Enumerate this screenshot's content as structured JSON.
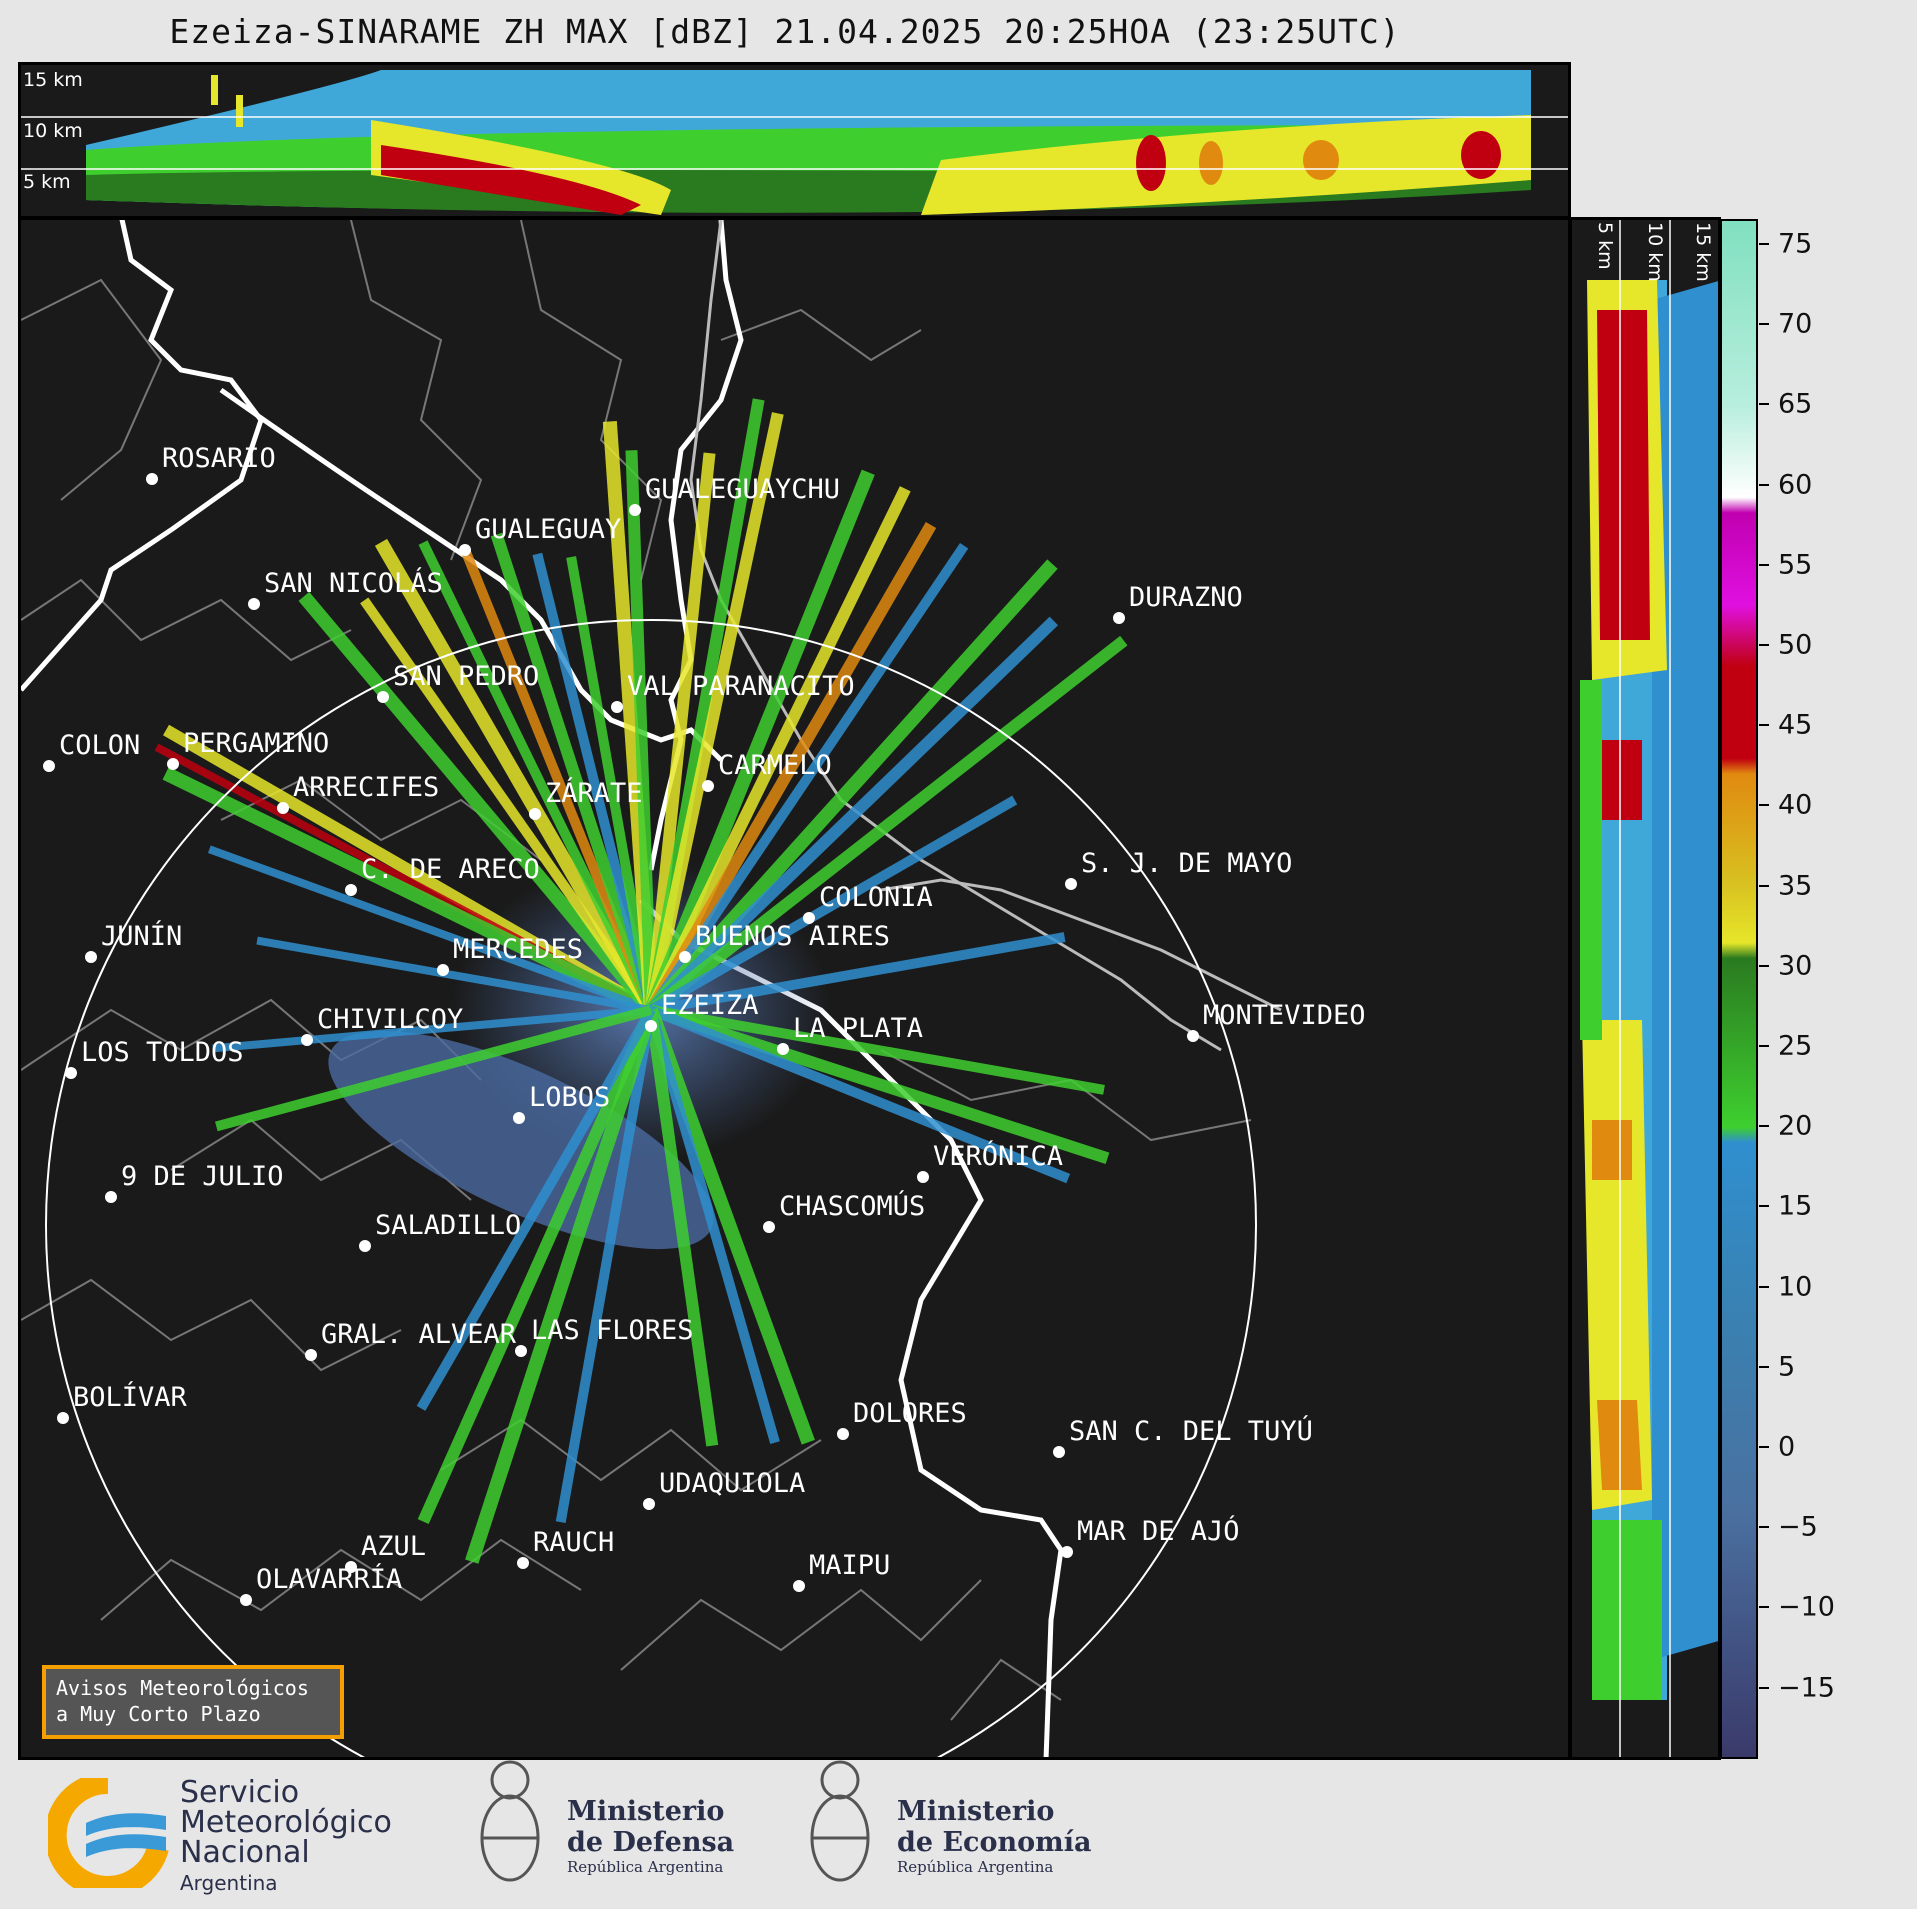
{
  "title": "Ezeiza-SINARAME ZH MAX [dBZ] 21.04.2025 20:25HOA (23:25UTC)",
  "top_panel": {
    "heights": [
      "15 km",
      "10 km",
      "5 km"
    ]
  },
  "right_panel": {
    "heights": [
      "5 km",
      "10 km",
      "15 km"
    ]
  },
  "colorbar": {
    "ticks": [
      "75",
      "70",
      "65",
      "60",
      "55",
      "50",
      "45",
      "40",
      "35",
      "30",
      "25",
      "20",
      "15",
      "10",
      "5",
      "0",
      "−5",
      "−10",
      "−15"
    ],
    "range": [
      -20,
      77
    ],
    "colors": {
      "low": "#3a3a6a",
      "blue": "#2f8fcf",
      "green": "#3ecf2f",
      "yellow": "#e6e62a",
      "orange": "#e08a10",
      "red": "#c00010",
      "magenta": "#e010e0",
      "white": "#ffffff",
      "mint": "#80e0c0"
    }
  },
  "cities": [
    {
      "name": "ROSARIO"
    },
    {
      "name": "GUALEGUAYCHU"
    },
    {
      "name": "GUALEGUAY"
    },
    {
      "name": "SAN NICOLÁS"
    },
    {
      "name": "DURAZNO"
    },
    {
      "name": "SAN PEDRO"
    },
    {
      "name": "VAL PARANACITO"
    },
    {
      "name": "COLON"
    },
    {
      "name": "PERGAMINO"
    },
    {
      "name": "CARMELO"
    },
    {
      "name": "ARRECIFES"
    },
    {
      "name": "ZÁRATE"
    },
    {
      "name": "S. J. DE MAYO"
    },
    {
      "name": "C. DE ARECO"
    },
    {
      "name": "COLONIA"
    },
    {
      "name": "JUNÍN"
    },
    {
      "name": "BUENOS AIRES"
    },
    {
      "name": "MERCEDES"
    },
    {
      "name": "EZEIZA"
    },
    {
      "name": "MONTEVIDEO"
    },
    {
      "name": "CHIVILCOY"
    },
    {
      "name": "LA PLATA"
    },
    {
      "name": "LOS TOLDOS"
    },
    {
      "name": "LOBOS"
    },
    {
      "name": "VERÓNICA"
    },
    {
      "name": "9 DE JULIO"
    },
    {
      "name": "CHASCOMÚS"
    },
    {
      "name": "SALADILLO"
    },
    {
      "name": "GRAL. ALVEAR"
    },
    {
      "name": "LAS FLORES"
    },
    {
      "name": "BOLÍVAR"
    },
    {
      "name": "DOLORES"
    },
    {
      "name": "SAN C. DEL TUYÚ"
    },
    {
      "name": "UDAQUIOLA"
    },
    {
      "name": "MAR DE AJÓ"
    },
    {
      "name": "AZUL"
    },
    {
      "name": "RAUCH"
    },
    {
      "name": "OLAVARRÍA"
    },
    {
      "name": "MAIPU"
    }
  ],
  "avisos": {
    "line1": "Avisos Meteorológicos",
    "line2": "a Muy Corto Plazo"
  },
  "logos": {
    "smn": {
      "line1": "Servicio",
      "line2": "Meteorológico",
      "line3": "Nacional",
      "line4": "Argentina"
    },
    "defensa": {
      "line1": "Ministerio",
      "line2": "de Defensa",
      "line3": "República Argentina"
    },
    "economia": {
      "line1": "Ministerio",
      "line2": "de Economía",
      "line3": "República Argentina"
    }
  }
}
